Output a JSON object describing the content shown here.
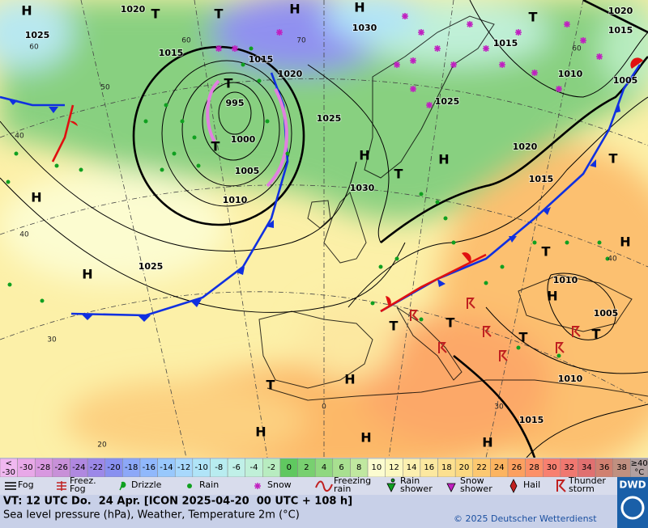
{
  "map": {
    "isobar_labels": [
      1020,
      1025,
      1015,
      1015,
      1020,
      995,
      1000,
      1005,
      1010,
      1025,
      1030,
      1015,
      1010,
      1005,
      1020,
      1015,
      1030,
      1025,
      1025,
      1010,
      1005,
      1010,
      1015,
      1020,
      1015
    ],
    "pressure_centers": [
      "H",
      "T",
      "T",
      "H",
      "H",
      "T",
      "T",
      "T",
      "H",
      "T",
      "H",
      "H",
      "H",
      "T",
      "H",
      "T",
      "H",
      "T",
      "T",
      "T",
      "T",
      "H",
      "T",
      "H",
      "H",
      "H"
    ],
    "latitude_labels": [
      60,
      70,
      50,
      40,
      40,
      30,
      20,
      0,
      30,
      40,
      60,
      60
    ]
  },
  "colorbar": {
    "low": {
      "top": "<",
      "bottom": -30,
      "color": "#f0b8f0"
    },
    "labels": [
      -30,
      -28,
      -26,
      -24,
      -22,
      -20,
      -18,
      -16,
      -14,
      -12,
      -10,
      -8,
      -6,
      -4,
      -2,
      0,
      2,
      4,
      6,
      8,
      10,
      12,
      14,
      16,
      18,
      20,
      22,
      24,
      26,
      28,
      30,
      32,
      34,
      36,
      38
    ],
    "colors": [
      "#e8a8e8",
      "#d898e0",
      "#c890d8",
      "#b088e0",
      "#9c88e8",
      "#8890f0",
      "#8ca8f8",
      "#90b8fc",
      "#98c8fc",
      "#a8d8fc",
      "#b0e4f8",
      "#b8ecf0",
      "#c0f0e8",
      "#c0f0d8",
      "#b8ecc0",
      "#60c860",
      "#78d070",
      "#90d880",
      "#a8e090",
      "#c0e8a0",
      "#fcfcd0",
      "#fcf8c0",
      "#fcf0b0",
      "#fce8a0",
      "#fce090",
      "#fcd880",
      "#fcc870",
      "#fcb460",
      "#fca060",
      "#fc9068",
      "#f88070",
      "#f07870",
      "#e07070",
      "#d08070",
      "#c09080"
    ],
    "high": {
      "top": "≥40",
      "bottom": "°C",
      "color": "#b0a0a0"
    }
  },
  "legend": [
    [
      "Fog"
    ],
    [
      "Freez.",
      "Fog"
    ],
    [
      "Drizzle"
    ],
    [
      "Rain"
    ],
    [
      "Snow"
    ],
    [
      "Freezing",
      "rain"
    ],
    [
      "Rain",
      "shower"
    ],
    [
      "Snow",
      "shower"
    ],
    [
      "Hail"
    ],
    [
      "Thunder",
      "storm"
    ]
  ],
  "footer": {
    "valid_time": "VT: 12 UTC Do.  24 Apr. [ICON 2025-04-20  00 UTC + 108 h]",
    "subtitle": "Sea level pressure (hPa), Weather, Temperature 2m (°C)",
    "copyright": "© 2025 Deutscher Wetterdienst",
    "logo": "DWD"
  }
}
